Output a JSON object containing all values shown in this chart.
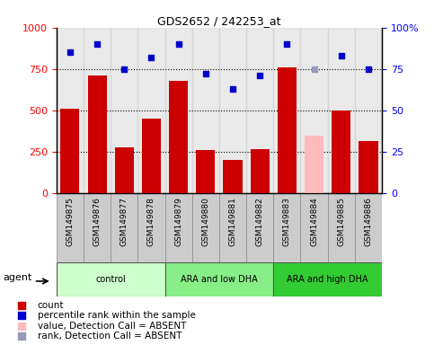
{
  "title": "GDS2652 / 242253_at",
  "categories": [
    "GSM149875",
    "GSM149876",
    "GSM149877",
    "GSM149878",
    "GSM149879",
    "GSM149880",
    "GSM149881",
    "GSM149882",
    "GSM149883",
    "GSM149884",
    "GSM149885",
    "GSM149886"
  ],
  "bar_values": [
    510,
    710,
    275,
    450,
    680,
    260,
    200,
    265,
    760,
    350,
    500,
    315
  ],
  "bar_absent": [
    false,
    false,
    false,
    false,
    false,
    false,
    false,
    false,
    false,
    true,
    false,
    false
  ],
  "rank_values": [
    85,
    90,
    75,
    82,
    90,
    72,
    63,
    71,
    90,
    75,
    83,
    75
  ],
  "rank_absent": [
    false,
    false,
    false,
    false,
    false,
    false,
    false,
    false,
    false,
    true,
    false,
    false
  ],
  "bar_color_normal": "#cc0000",
  "bar_color_absent": "#ffbbbb",
  "rank_color_normal": "#0000cc",
  "rank_color_absent": "#9999bb",
  "ylim_left": [
    0,
    1000
  ],
  "ylim_right": [
    0,
    100
  ],
  "yticks_left": [
    0,
    250,
    500,
    750,
    1000
  ],
  "yticks_right": [
    0,
    25,
    50,
    75,
    100
  ],
  "col_bg_color": "#cccccc",
  "groups": [
    {
      "label": "control",
      "start": 0,
      "end": 3,
      "color": "#ccffcc"
    },
    {
      "label": "ARA and low DHA",
      "start": 4,
      "end": 7,
      "color": "#88ee88"
    },
    {
      "label": "ARA and high DHA",
      "start": 8,
      "end": 11,
      "color": "#33cc33"
    }
  ],
  "legend_items": [
    {
      "label": "count",
      "color": "#cc0000"
    },
    {
      "label": "percentile rank within the sample",
      "color": "#0000cc"
    },
    {
      "label": "value, Detection Call = ABSENT",
      "color": "#ffbbbb"
    },
    {
      "label": "rank, Detection Call = ABSENT",
      "color": "#9999bb"
    }
  ],
  "agent_label": "agent",
  "background_color": "#ffffff"
}
